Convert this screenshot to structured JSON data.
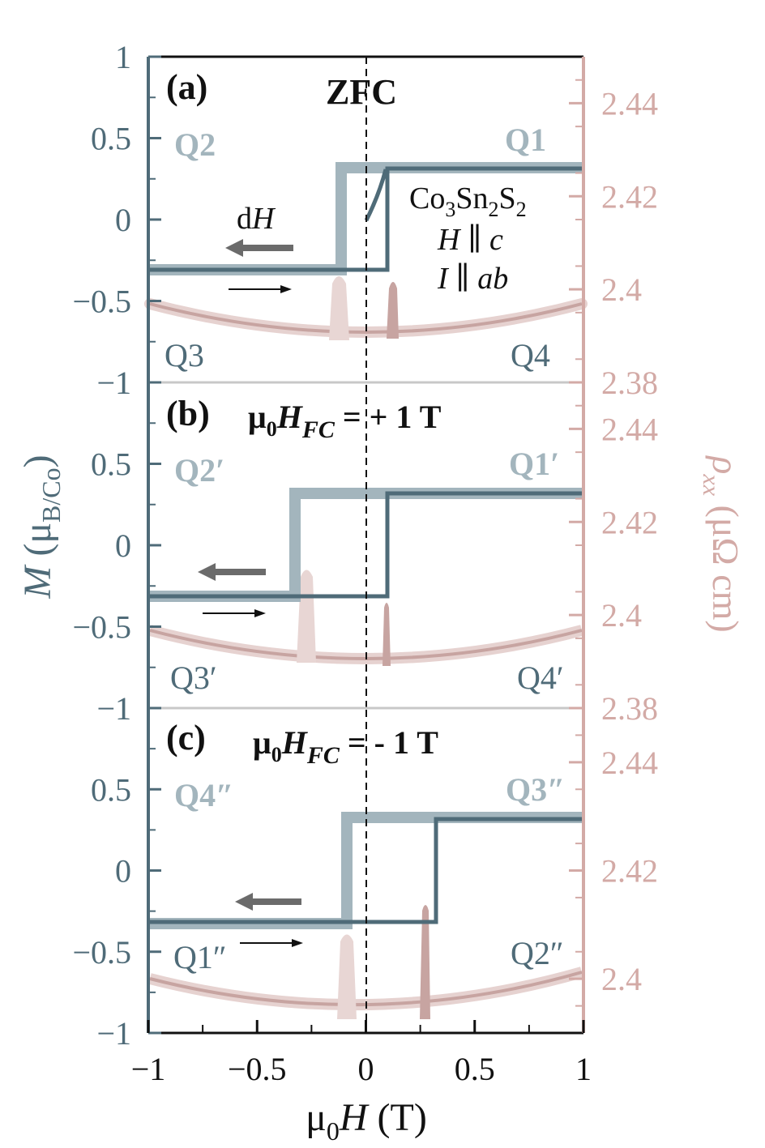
{
  "axes": {
    "xlabel": {
      "base": "μ",
      "sub": "0",
      "main": "H",
      "unit": " (T)"
    },
    "ylabel_left": {
      "main": "M",
      "open": " (μ",
      "sub": "B/Co",
      "close": ")"
    },
    "ylabel_right": {
      "main": "ρ",
      "sub": "xx",
      "unit": " (μΩ cm)"
    },
    "x_ticks": [
      "−1",
      "−0.5",
      "0",
      "0.5",
      "1"
    ],
    "y_ticks_left": [
      "1",
      "0.5",
      "0",
      "−0.5",
      "−1"
    ],
    "colors": {
      "m_dark": "#4f6b78",
      "m_light": "#a3b5bd",
      "rho": "#d3aaa6",
      "rho_light": "#e6d2d0"
    }
  },
  "chart_data": [
    {
      "type": "line",
      "panel_label": "(a)",
      "condition": "ZFC",
      "xlim": [
        -1,
        1
      ],
      "ylim_left": [
        -1,
        1
      ],
      "ylim_right": [
        2.38,
        2.45
      ],
      "right_ticks": [
        "2.44",
        "2.42",
        "2.4",
        "2.38"
      ],
      "right_tick_values": [
        2.44,
        2.42,
        2.4,
        2.38
      ],
      "quadrants": {
        "top_left": "Q2",
        "top_right": "Q1",
        "bottom_left": "Q3",
        "bottom_right": "Q4"
      },
      "sample": {
        "formula": [
          "Co",
          "3",
          "Sn",
          "2",
          "S",
          "2"
        ],
        "field": [
          "H",
          " ∥ ",
          "c"
        ],
        "current": [
          "I",
          " ∥ ",
          "ab"
        ]
      },
      "sweep_label": [
        "d",
        "H"
      ],
      "series": [
        {
          "x": [
            -1,
            -0.12,
            -0.12,
            1
          ],
          "y": [
            -0.31,
            -0.31,
            0.32,
            0.32
          ]
        },
        {
          "x": [
            -1,
            0.1,
            0.1,
            1
          ],
          "y": [
            -0.3,
            -0.3,
            0.32,
            0.32
          ]
        },
        {
          "x": [
            0,
            0.02,
            0.04,
            0.06,
            0.08,
            0.1
          ],
          "y": [
            0,
            0.05,
            0.1,
            0.18,
            0.26,
            0.32
          ]
        },
        {
          "x": [
            -1,
            -0.5,
            -0.2,
            0,
            0.2,
            0.5,
            1
          ],
          "y": [
            2.3955,
            2.392,
            2.3895,
            2.389,
            2.3895,
            2.392,
            2.3955
          ]
        },
        {
          "x": [
            -0.12,
            0.12
          ],
          "y": [
            2.4,
            2.4
          ]
        }
      ]
    },
    {
      "type": "line",
      "panel_label": "(b)",
      "condition": {
        "pre": "μ",
        "sub0": "0",
        "H": "H",
        "sub": "FC",
        "post": " = + 1 T"
      },
      "xlim": [
        -1,
        1
      ],
      "ylim_left": [
        -1,
        1
      ],
      "ylim_right": [
        2.38,
        2.45
      ],
      "right_ticks": [
        "2.44",
        "2.42",
        "2.4",
        "2.38"
      ],
      "right_tick_values": [
        2.44,
        2.42,
        2.4,
        2.38
      ],
      "quadrants": {
        "top_left": "Q2′",
        "top_right": "Q1′",
        "bottom_left": "Q3′",
        "bottom_right": "Q4′"
      },
      "series": [
        {
          "x": [
            -1,
            -0.35,
            -0.35,
            1
          ],
          "y": [
            -0.31,
            -0.31,
            0.33,
            0.33
          ]
        },
        {
          "x": [
            -1,
            0.1,
            0.1,
            1
          ],
          "y": [
            -0.3,
            -0.3,
            0.32,
            0.32
          ]
        },
        {
          "x": [
            -1,
            -0.5,
            -0.2,
            0,
            0.2,
            0.5,
            1
          ],
          "y": [
            2.3955,
            2.392,
            2.3895,
            2.389,
            2.3895,
            2.392,
            2.3955
          ]
        },
        {
          "x": [
            -0.28,
            0.09
          ],
          "y": [
            2.402,
            2.4
          ]
        }
      ]
    },
    {
      "type": "line",
      "panel_label": "(c)",
      "condition": {
        "pre": "μ",
        "sub0": "0",
        "H": "H",
        "sub": "FC",
        "post": " = - 1 T"
      },
      "xlim": [
        -1,
        1
      ],
      "ylim_left": [
        -1,
        1
      ],
      "ylim_right": [
        2.39,
        2.45
      ],
      "right_ticks": [
        "2.44",
        "2.42",
        "2.4"
      ],
      "right_tick_values": [
        2.44,
        2.42,
        2.4
      ],
      "quadrants": {
        "top_left": "Q4″",
        "top_right": "Q3″",
        "bottom_left": "Q1″",
        "bottom_right": "Q2″"
      },
      "series": [
        {
          "x": [
            -1,
            -0.1,
            -0.1,
            1
          ],
          "y": [
            -0.33,
            -0.33,
            0.34,
            0.34
          ]
        },
        {
          "x": [
            -1,
            0.32,
            0.32,
            1
          ],
          "y": [
            -0.31,
            -0.31,
            0.32,
            0.32
          ]
        },
        {
          "x": [
            -1,
            -0.5,
            -0.2,
            0,
            0.2,
            0.5,
            1
          ],
          "y": [
            2.397,
            2.394,
            2.392,
            2.391,
            2.392,
            2.394,
            2.397
          ]
        },
        {
          "x": [
            -0.1,
            0.27
          ],
          "y": [
            2.398,
            2.397
          ]
        }
      ]
    }
  ]
}
